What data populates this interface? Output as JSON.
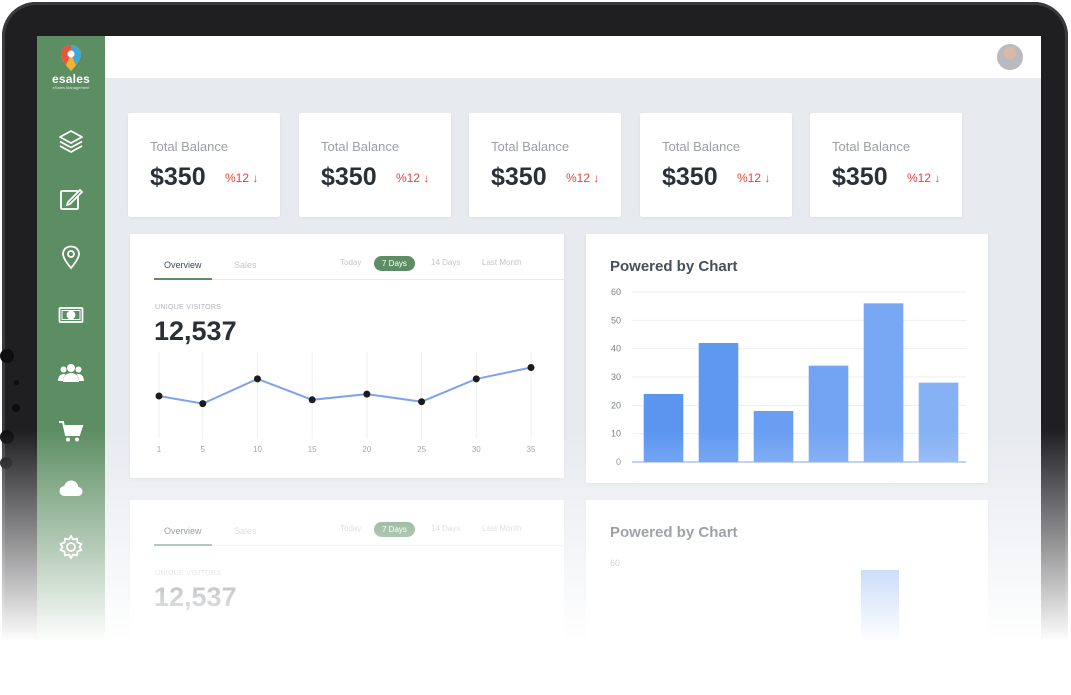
{
  "app": {
    "logo_name": "esales",
    "logo_tagline": "eSales Management"
  },
  "sidebar": {
    "items": [
      {
        "icon": "layers-icon",
        "name": "layers"
      },
      {
        "icon": "edit-icon",
        "name": "edit"
      },
      {
        "icon": "location-pin-icon",
        "name": "location"
      },
      {
        "icon": "cash-icon",
        "name": "cash"
      },
      {
        "icon": "users-icon",
        "name": "users"
      },
      {
        "icon": "cart-icon",
        "name": "cart"
      },
      {
        "icon": "cloud-icon",
        "name": "cloud"
      },
      {
        "icon": "gear-icon",
        "name": "settings"
      }
    ]
  },
  "stats": [
    {
      "label": "Total Balance",
      "value": "$350",
      "change": "%12 ↓"
    },
    {
      "label": "Total Balance",
      "value": "$350",
      "change": "%12 ↓"
    },
    {
      "label": "Total Balance",
      "value": "$350",
      "change": "%12 ↓"
    },
    {
      "label": "Total Balance",
      "value": "$350",
      "change": "%12 ↓"
    },
    {
      "label": "Total Balance",
      "value": "$350",
      "change": "%12 ↓"
    }
  ],
  "visitors_panel": {
    "tabs": [
      "Overview",
      "Sales"
    ],
    "ranges": [
      "Today",
      "7 Days",
      "14 Days",
      "Last Month"
    ],
    "active_range": "7 Days",
    "metric_label": "UNIQUE VISITORS",
    "metric_value": "12,537"
  },
  "bar_panel": {
    "title": "Powered by Chart"
  },
  "colors": {
    "sidebar": "#5d8e63",
    "accent": "#5d8e63",
    "line": "#7fa2f0",
    "bar": "#6a9ef2",
    "negative": "#e04545"
  },
  "chart_data": [
    {
      "type": "line",
      "title": "",
      "x": [
        1,
        5,
        10,
        15,
        20,
        25,
        30,
        35
      ],
      "xticks": [
        "1",
        "5",
        "10",
        "15",
        "20",
        "25",
        "30",
        "35"
      ],
      "series": [
        {
          "values": [
            40,
            32,
            58,
            36,
            42,
            34,
            58,
            70
          ]
        }
      ],
      "grid": true
    },
    {
      "type": "bar",
      "title": "Powered by Chart",
      "categories": [
        "",
        "",
        "",
        "",
        "",
        ""
      ],
      "values": [
        24,
        42,
        18,
        34,
        56,
        28
      ],
      "ylim": [
        0,
        60
      ],
      "yticks": [
        "0",
        "10",
        "20",
        "30",
        "40",
        "50",
        "60"
      ],
      "grid": true
    }
  ]
}
